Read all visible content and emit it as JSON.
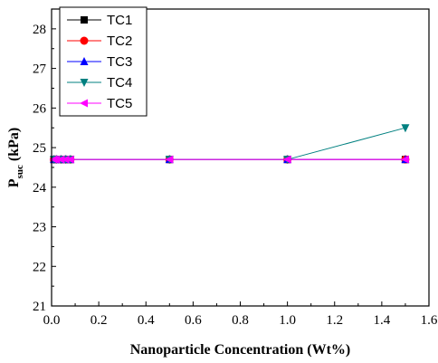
{
  "chart_data": {
    "type": "line",
    "xlabel": "Nanoparticle Concentration (Wt%)",
    "ylabel_main": "P",
    "ylabel_sub": "suc",
    "ylabel_unit": " (kPa)",
    "xlim": [
      0.0,
      1.6
    ],
    "ylim": [
      21,
      28.5
    ],
    "xticks": [
      0.0,
      0.2,
      0.4,
      0.6,
      0.8,
      1.0,
      1.2,
      1.4,
      1.6
    ],
    "xtick_labels": [
      "0.0",
      "0.2",
      "0.4",
      "0.6",
      "0.8",
      "1.0",
      "1.2",
      "1.4",
      "1.6"
    ],
    "yticks": [
      21,
      22,
      23,
      24,
      25,
      26,
      27,
      28
    ],
    "ytick_labels": [
      "21",
      "22",
      "23",
      "24",
      "25",
      "26",
      "27",
      "28"
    ],
    "grid": false,
    "legend_position": "top-left",
    "series": [
      {
        "name": "TC1",
        "color": "#000000",
        "marker": "square",
        "x": [
          0.01,
          0.02,
          0.04,
          0.06,
          0.08,
          0.5,
          1.0,
          1.5
        ],
        "y": [
          24.7,
          24.7,
          24.7,
          24.7,
          24.7,
          24.7,
          24.7,
          24.7
        ]
      },
      {
        "name": "TC2",
        "color": "#ff0000",
        "marker": "circle",
        "x": [
          0.01,
          0.02,
          0.04,
          0.06,
          0.08,
          0.5,
          1.0,
          1.5
        ],
        "y": [
          24.7,
          24.7,
          24.7,
          24.7,
          24.7,
          24.7,
          24.7,
          24.7
        ]
      },
      {
        "name": "TC3",
        "color": "#0000ff",
        "marker": "triangle-up",
        "x": [
          0.01,
          0.02,
          0.04,
          0.06,
          0.08,
          0.5,
          1.0,
          1.5
        ],
        "y": [
          24.7,
          24.7,
          24.7,
          24.7,
          24.7,
          24.7,
          24.7,
          24.7
        ]
      },
      {
        "name": "TC4",
        "color": "#008080",
        "marker": "triangle-down",
        "x": [
          0.01,
          0.02,
          0.04,
          0.06,
          0.08,
          0.5,
          1.0,
          1.5
        ],
        "y": [
          24.7,
          24.7,
          24.7,
          24.7,
          24.7,
          24.7,
          24.7,
          25.5
        ]
      },
      {
        "name": "TC5",
        "color": "#ff00ff",
        "marker": "triangle-left",
        "x": [
          0.01,
          0.02,
          0.04,
          0.06,
          0.08,
          0.5,
          1.0,
          1.5
        ],
        "y": [
          24.7,
          24.7,
          24.7,
          24.7,
          24.7,
          24.7,
          24.7,
          24.7
        ]
      }
    ]
  }
}
